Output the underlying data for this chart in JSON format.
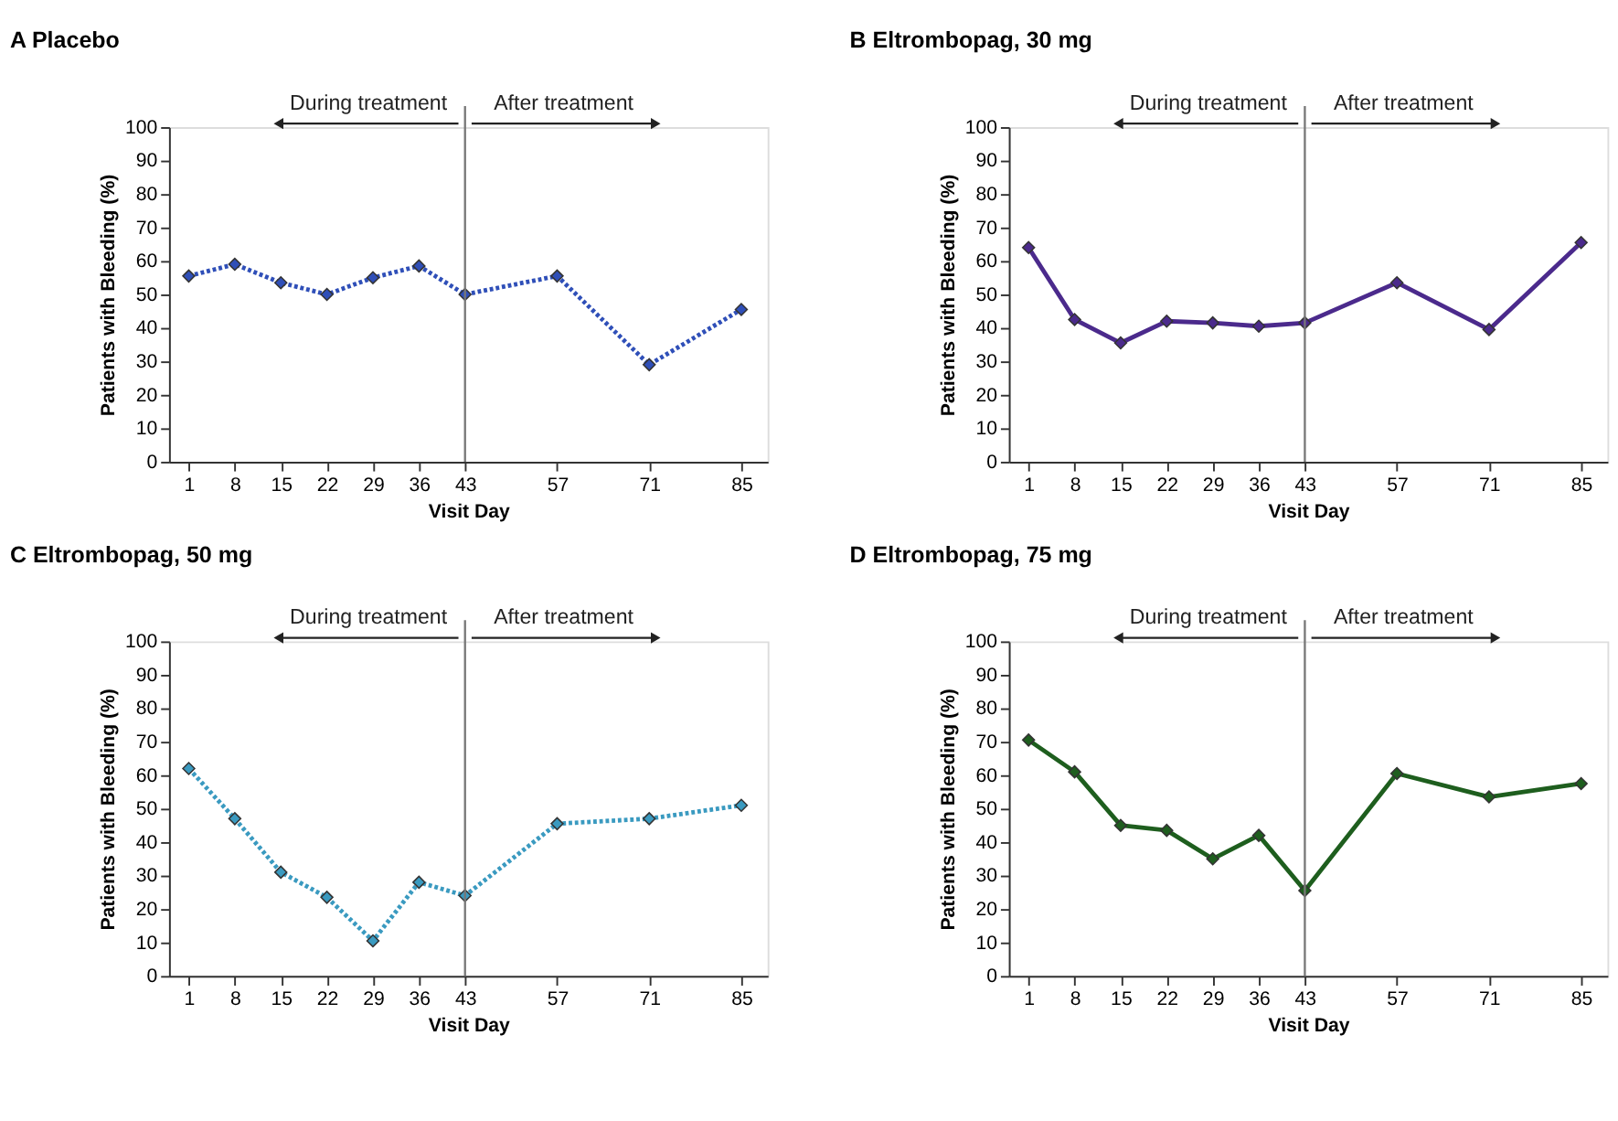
{
  "chart_data": [
    {
      "type": "line",
      "title": "A  Placebo",
      "xlabel": "Visit Day",
      "ylabel": "Patients with Bleeding (%)",
      "x": [
        1,
        8,
        15,
        22,
        29,
        36,
        43,
        57,
        71,
        85
      ],
      "series": [
        {
          "color": "#2f4fb8",
          "values": [
            55.5,
            59,
            53.5,
            50,
            55,
            58.5,
            50,
            55.5,
            29,
            45.5
          ]
        }
      ],
      "xlim": [
        -2,
        89
      ],
      "xticks": [
        1,
        8,
        15,
        22,
        29,
        36,
        43,
        57,
        71,
        85
      ],
      "ylim": [
        0,
        100
      ],
      "yticks": [
        0,
        10,
        20,
        30,
        40,
        50,
        60,
        70,
        80,
        90,
        100
      ],
      "ref_lines": [
        {
          "axis": "x",
          "value": 43,
          "color": "#777777"
        }
      ],
      "annotations": [
        "During treatment",
        "After treatment"
      ],
      "marker": "diamond",
      "line_style": "dotted",
      "grid": false
    },
    {
      "type": "line",
      "title": "B  Eltrombopag, 30 mg",
      "xlabel": "Visit Day",
      "ylabel": "Patients with Bleeding (%)",
      "x": [
        1,
        8,
        15,
        22,
        29,
        36,
        43,
        57,
        71,
        85
      ],
      "series": [
        {
          "color": "#4b2a8c",
          "values": [
            64,
            42.5,
            35.5,
            42,
            41.5,
            40.5,
            41.5,
            53.5,
            39.5,
            65.5
          ]
        }
      ],
      "xlim": [
        -2,
        89
      ],
      "xticks": [
        1,
        8,
        15,
        22,
        29,
        36,
        43,
        57,
        71,
        85
      ],
      "ylim": [
        0,
        100
      ],
      "yticks": [
        0,
        10,
        20,
        30,
        40,
        50,
        60,
        70,
        80,
        90,
        100
      ],
      "ref_lines": [
        {
          "axis": "x",
          "value": 43,
          "color": "#777777"
        }
      ],
      "annotations": [
        "During treatment",
        "After treatment"
      ],
      "marker": "diamond",
      "line_style": "solid",
      "grid": false
    },
    {
      "type": "line",
      "title": "C  Eltrombopag, 50 mg",
      "xlabel": "Visit Day",
      "ylabel": "Patients with Bleeding (%)",
      "x": [
        1,
        8,
        15,
        22,
        29,
        36,
        43,
        57,
        71,
        85
      ],
      "series": [
        {
          "color": "#3a9ac0",
          "values": [
            62,
            47,
            31,
            23.5,
            10.5,
            28,
            24,
            45.5,
            47,
            51
          ]
        }
      ],
      "xlim": [
        -2,
        89
      ],
      "xticks": [
        1,
        8,
        15,
        22,
        29,
        36,
        43,
        57,
        71,
        85
      ],
      "ylim": [
        0,
        100
      ],
      "yticks": [
        0,
        10,
        20,
        30,
        40,
        50,
        60,
        70,
        80,
        90,
        100
      ],
      "ref_lines": [
        {
          "axis": "x",
          "value": 43,
          "color": "#777777"
        }
      ],
      "annotations": [
        "During treatment",
        "After treatment"
      ],
      "marker": "diamond",
      "line_style": "dotted",
      "grid": false
    },
    {
      "type": "line",
      "title": "D  Eltrombopag, 75 mg",
      "xlabel": "Visit Day",
      "ylabel": "Patients with Bleeding (%)",
      "x": [
        1,
        8,
        15,
        22,
        29,
        36,
        43,
        57,
        71,
        85
      ],
      "series": [
        {
          "color": "#1e5e1e",
          "values": [
            70.5,
            61,
            45,
            43.5,
            35,
            42,
            25.5,
            60.5,
            53.5,
            57.5
          ]
        }
      ],
      "xlim": [
        -2,
        89
      ],
      "xticks": [
        1,
        8,
        15,
        22,
        29,
        36,
        43,
        57,
        71,
        85
      ],
      "ylim": [
        0,
        100
      ],
      "yticks": [
        0,
        10,
        20,
        30,
        40,
        50,
        60,
        70,
        80,
        90,
        100
      ],
      "ref_lines": [
        {
          "axis": "x",
          "value": 43,
          "color": "#777777"
        }
      ],
      "annotations": [
        "During treatment",
        "After treatment"
      ],
      "marker": "diamond",
      "line_style": "solid",
      "grid": false
    }
  ]
}
